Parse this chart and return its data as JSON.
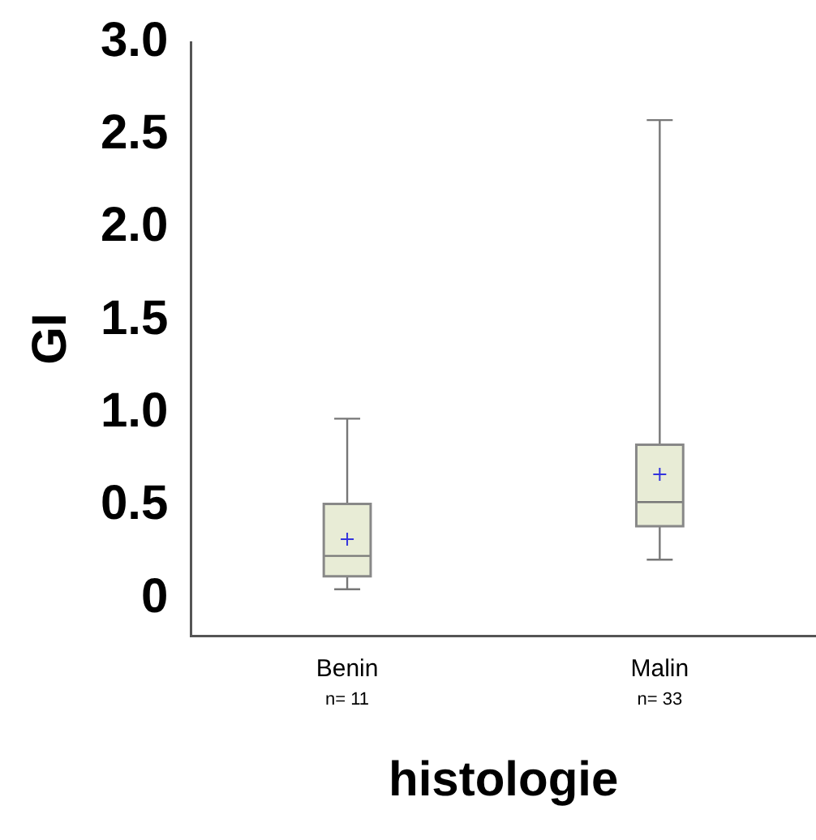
{
  "chart_data": {
    "type": "box",
    "xlabel": "histologie",
    "ylabel": "GI",
    "categories": [
      "Benin",
      "Malin"
    ],
    "series": [
      {
        "color": "#e8ecd6",
        "boxes": [
          {
            "low": 0.05,
            "q1": 0.12,
            "median": 0.23,
            "q3": 0.51,
            "high": 0.97,
            "mean": 0.32
          },
          {
            "low": 0.21,
            "q1": 0.39,
            "median": 0.52,
            "q3": 0.83,
            "high": 2.58,
            "mean": 0.67
          }
        ]
      }
    ],
    "annotations": [
      "n= 11",
      "n= 33"
    ],
    "ylim": [
      -0.2,
      3.0
    ],
    "yticks": [
      {
        "value": 0,
        "label": "0"
      },
      {
        "value": 0.5,
        "label": "0.5"
      },
      {
        "value": 1,
        "label": "1.0"
      },
      {
        "value": 1.5,
        "label": "1.5"
      },
      {
        "value": 2,
        "label": "2.0"
      },
      {
        "value": 2.5,
        "label": "2.5"
      },
      {
        "value": 3,
        "label": "3.0"
      }
    ],
    "grid": false,
    "legend": false,
    "marker": "cross"
  }
}
